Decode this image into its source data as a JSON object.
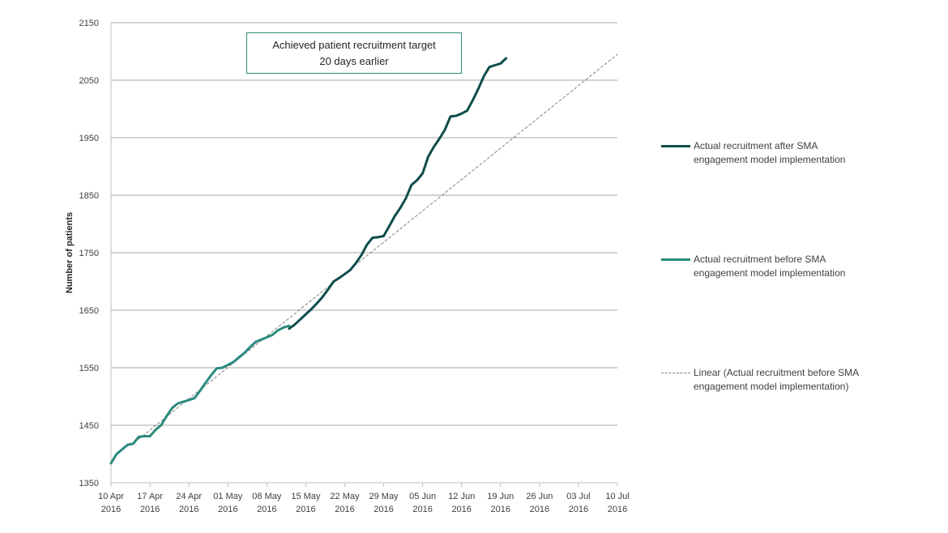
{
  "chart_data": {
    "type": "line",
    "ylabel": "Number of patients",
    "ylim": [
      1350,
      2150
    ],
    "yticks": [
      1350,
      1450,
      1550,
      1650,
      1750,
      1850,
      1950,
      2050,
      2150
    ],
    "x_start": "2016-04-10",
    "x_end": "2016-07-10",
    "xticks": [
      {
        "date": "2016-04-10",
        "line1": "10 Apr",
        "line2": "2016"
      },
      {
        "date": "2016-04-17",
        "line1": "17 Apr",
        "line2": "2016"
      },
      {
        "date": "2016-04-24",
        "line1": "24 Apr",
        "line2": "2016"
      },
      {
        "date": "2016-05-01",
        "line1": "01 May",
        "line2": "2016"
      },
      {
        "date": "2016-05-08",
        "line1": "08 May",
        "line2": "2016"
      },
      {
        "date": "2016-05-15",
        "line1": "15 May",
        "line2": "2016"
      },
      {
        "date": "2016-05-22",
        "line1": "22 May",
        "line2": "2016"
      },
      {
        "date": "2016-05-29",
        "line1": "29 May",
        "line2": "2016"
      },
      {
        "date": "2016-06-05",
        "line1": "05 Jun",
        "line2": "2016"
      },
      {
        "date": "2016-06-12",
        "line1": "12 Jun",
        "line2": "2016"
      },
      {
        "date": "2016-06-19",
        "line1": "19 Jun",
        "line2": "2016"
      },
      {
        "date": "2016-06-26",
        "line1": "26 Jun",
        "line2": "2016"
      },
      {
        "date": "2016-07-03",
        "line1": "03 Jul",
        "line2": "2016"
      },
      {
        "date": "2016-07-10",
        "line1": "10 Jul",
        "line2": "2016"
      }
    ],
    "grid": true,
    "legend_position": "right",
    "annotation": {
      "line1": "Achieved patient recruitment target",
      "line2": "20 days earlier"
    },
    "series": [
      {
        "name": "Actual recruitment after SMA engagement model implementation",
        "color": "#0e4d4b",
        "style": "solid",
        "points": [
          [
            "2016-05-12",
            1618
          ],
          [
            "2016-05-13",
            1625
          ],
          [
            "2016-05-14",
            1634
          ],
          [
            "2016-05-15",
            1643
          ],
          [
            "2016-05-16",
            1652
          ],
          [
            "2016-05-17",
            1662
          ],
          [
            "2016-05-18",
            1673
          ],
          [
            "2016-05-19",
            1686
          ],
          [
            "2016-05-20",
            1700
          ],
          [
            "2016-05-21",
            1706
          ],
          [
            "2016-05-22",
            1713
          ],
          [
            "2016-05-23",
            1720
          ],
          [
            "2016-05-24",
            1732
          ],
          [
            "2016-05-25",
            1746
          ],
          [
            "2016-05-26",
            1764
          ],
          [
            "2016-05-27",
            1776
          ],
          [
            "2016-05-28",
            1777
          ],
          [
            "2016-05-29",
            1779
          ],
          [
            "2016-05-30",
            1796
          ],
          [
            "2016-05-31",
            1814
          ],
          [
            "2016-06-01",
            1828
          ],
          [
            "2016-06-02",
            1845
          ],
          [
            "2016-06-03",
            1868
          ],
          [
            "2016-06-04",
            1876
          ],
          [
            "2016-06-05",
            1888
          ],
          [
            "2016-06-06",
            1917
          ],
          [
            "2016-06-07",
            1934
          ],
          [
            "2016-06-08",
            1948
          ],
          [
            "2016-06-09",
            1964
          ],
          [
            "2016-06-10",
            1987
          ],
          [
            "2016-06-11",
            1988
          ],
          [
            "2016-06-12",
            1992
          ],
          [
            "2016-06-13",
            1997
          ],
          [
            "2016-06-14",
            2015
          ],
          [
            "2016-06-15",
            2035
          ],
          [
            "2016-06-16",
            2057
          ],
          [
            "2016-06-17",
            2073
          ],
          [
            "2016-06-18",
            2076
          ],
          [
            "2016-06-19",
            2079
          ],
          [
            "2016-06-20",
            2088
          ]
        ]
      },
      {
        "name": "Actual recruitment before SMA engagement model implementation",
        "color": "#2a8a7e",
        "style": "solid",
        "points": [
          [
            "2016-04-10",
            1384
          ],
          [
            "2016-04-11",
            1400
          ],
          [
            "2016-04-12",
            1408
          ],
          [
            "2016-04-13",
            1416
          ],
          [
            "2016-04-14",
            1418
          ],
          [
            "2016-04-15",
            1430
          ],
          [
            "2016-04-16",
            1431
          ],
          [
            "2016-04-17",
            1431
          ],
          [
            "2016-04-18",
            1442
          ],
          [
            "2016-04-19",
            1450
          ],
          [
            "2016-04-20",
            1466
          ],
          [
            "2016-04-21",
            1480
          ],
          [
            "2016-04-22",
            1488
          ],
          [
            "2016-04-23",
            1491
          ],
          [
            "2016-04-24",
            1494
          ],
          [
            "2016-04-25",
            1497
          ],
          [
            "2016-04-26",
            1510
          ],
          [
            "2016-04-27",
            1524
          ],
          [
            "2016-04-28",
            1537
          ],
          [
            "2016-04-29",
            1549
          ],
          [
            "2016-04-30",
            1550
          ],
          [
            "2016-05-01",
            1555
          ],
          [
            "2016-05-02",
            1560
          ],
          [
            "2016-05-03",
            1568
          ],
          [
            "2016-05-04",
            1576
          ],
          [
            "2016-05-05",
            1586
          ],
          [
            "2016-05-06",
            1595
          ],
          [
            "2016-05-07",
            1599
          ],
          [
            "2016-05-08",
            1603
          ],
          [
            "2016-05-09",
            1607
          ],
          [
            "2016-05-10",
            1615
          ],
          [
            "2016-05-11",
            1620
          ],
          [
            "2016-05-12",
            1623
          ]
        ]
      },
      {
        "name": "Linear (Actual recruitment before SMA engagement model implementation)",
        "color": "#808080",
        "style": "dashed",
        "points": [
          [
            "2016-04-15",
            1426
          ],
          [
            "2016-07-10",
            2095
          ]
        ]
      }
    ]
  }
}
